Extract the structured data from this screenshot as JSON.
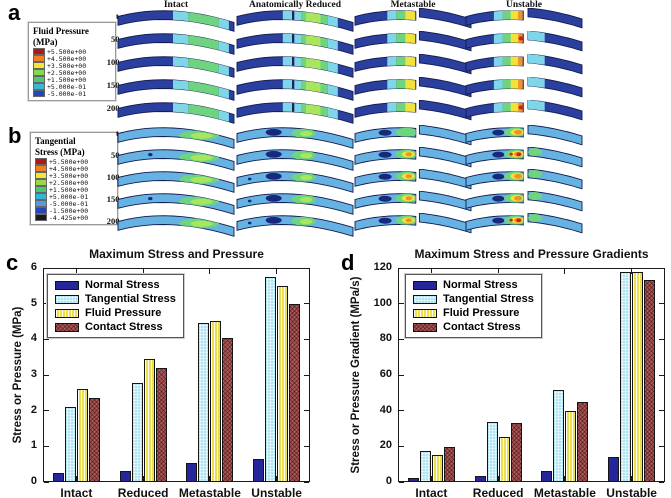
{
  "panels": {
    "a": {
      "label": "a",
      "legend": {
        "title_line1": "Fluid Pressure",
        "title_line2": "(MPa)",
        "entries": [
          {
            "color": "#b01818",
            "label": "+5.500e+00"
          },
          {
            "color": "#f08020",
            "label": "+4.500e+00"
          },
          {
            "color": "#f0e838",
            "label": "+3.500e+00"
          },
          {
            "color": "#86d94e",
            "label": "+2.500e+00"
          },
          {
            "color": "#4ec878",
            "label": "+1.500e+00"
          },
          {
            "color": "#38b8d8",
            "label": "+5.000e-01"
          },
          {
            "color": "#2446bc",
            "label": "-5.000e-01"
          }
        ]
      },
      "time_labels": [
        "t = 0",
        "50 ms",
        "100 ms",
        "150 ms",
        "200 ms"
      ],
      "columns": [
        "Intact",
        "Anatomically Reduced",
        "Metastable",
        "Unstable"
      ]
    },
    "b": {
      "label": "b",
      "legend": {
        "title_line1": "Tangential",
        "title_line2": "Stress (MPa)",
        "entries": [
          {
            "color": "#b01818",
            "label": "+5.500e+00"
          },
          {
            "color": "#f08020",
            "label": "+4.500e+00"
          },
          {
            "color": "#f0e838",
            "label": "+3.500e+00"
          },
          {
            "color": "#98d848",
            "label": "+2.500e+00"
          },
          {
            "color": "#48c870",
            "label": "+1.500e+00"
          },
          {
            "color": "#30b8d8",
            "label": "+5.000e-01"
          },
          {
            "color": "#5898e0",
            "label": "-5.000e-01"
          },
          {
            "color": "#2446bc",
            "label": "-1.500e+00"
          },
          {
            "color": "#1a1a1a",
            "label": "-4.425e+00"
          }
        ]
      },
      "time_labels": [
        "t = 0",
        "50 ms",
        "100 ms",
        "150 ms",
        "200 ms"
      ]
    },
    "c": {
      "label": "c"
    },
    "d": {
      "label": "d"
    }
  },
  "sim_colors": {
    "base_a": "#2b3f9e",
    "base_b": "#66b2e2",
    "cyan": "#7fd6e8",
    "green": "#6fd47f",
    "bright_green": "#a9e55d",
    "yellow": "#f2e23c",
    "orange": "#ef9228",
    "red": "#cf2020",
    "navy": "#16297e",
    "outline": "#131c4e",
    "fracture": "#1a2660"
  },
  "chart_data": [
    {
      "id": "c",
      "type": "bar",
      "title": "Maximum Stress and Pressure",
      "xlabel": "",
      "ylabel": "Stress or Pressure (MPa)",
      "ylim": [
        0,
        6
      ],
      "yticks": [
        0,
        1,
        2,
        3,
        4,
        5,
        6
      ],
      "grid": false,
      "legend_position": "top-left",
      "categories": [
        "Intact",
        "Reduced",
        "Metastable",
        "Unstable"
      ],
      "series": [
        {
          "name": "Normal Stress",
          "color": "#26269b",
          "pattern": "solid",
          "values": [
            0.25,
            0.3,
            0.52,
            0.65
          ]
        },
        {
          "name": "Tangential Stress",
          "color": "#b2e5f2",
          "pattern": "dots",
          "values": [
            2.1,
            2.77,
            4.47,
            5.75
          ]
        },
        {
          "name": "Fluid Pressure",
          "color": "#ecdf4e",
          "pattern": "vstripes",
          "values": [
            2.6,
            3.45,
            4.52,
            5.5
          ]
        },
        {
          "name": "Contact Stress",
          "color": "#a85a5a",
          "pattern": "crosshatch",
          "values": [
            2.35,
            3.2,
            4.05,
            5.0
          ]
        }
      ]
    },
    {
      "id": "d",
      "type": "bar",
      "title": "Maximum Stress and Pressure Gradients",
      "xlabel": "",
      "ylabel": "Stress or Pressure Gradient (MPa/s)",
      "ylim": [
        0,
        120
      ],
      "yticks": [
        0,
        20,
        40,
        60,
        80,
        100,
        120
      ],
      "grid": false,
      "legend_position": "top-left",
      "categories": [
        "Intact",
        "Reduced",
        "Metastable",
        "Unstable"
      ],
      "series": [
        {
          "name": "Normal Stress",
          "color": "#26269b",
          "pattern": "solid",
          "values": [
            2,
            3.5,
            6,
            14
          ]
        },
        {
          "name": "Tangential Stress",
          "color": "#b2e5f2",
          "pattern": "dots",
          "values": [
            17.5,
            33.5,
            51.5,
            118
          ]
        },
        {
          "name": "Fluid Pressure",
          "color": "#ecdf4e",
          "pattern": "vstripes",
          "values": [
            15,
            25.5,
            40,
            118
          ]
        },
        {
          "name": "Contact Stress",
          "color": "#a85a5a",
          "pattern": "crosshatch",
          "values": [
            19.5,
            33,
            45,
            113
          ]
        }
      ]
    }
  ]
}
